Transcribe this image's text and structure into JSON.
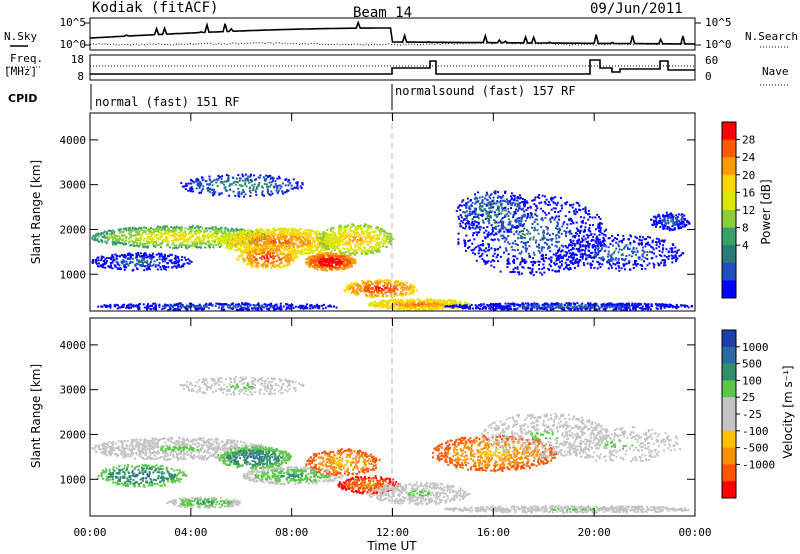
{
  "header": {
    "station": "Kodiak (fitACF)",
    "beam": "Beam 14",
    "date": "09/Jun/2011"
  },
  "strip": {
    "nsky_label": "N.Sky",
    "nsky_ticks": [
      "10^5",
      "10^0"
    ],
    "nsearch_label": "N.Search",
    "nsearch_ticks": [
      "10^5",
      "10^0"
    ],
    "freq_label_1": "Freq.",
    "freq_label_2": "[MHz]",
    "freq_ticks": [
      "18",
      "8"
    ],
    "nave_label": "Nave",
    "nave_ticks": [
      "60",
      "0"
    ],
    "cpid_label": "CPID",
    "cpid_segments": [
      "normal (fast) 151 RF",
      "normalsound (fast) 157 RF"
    ],
    "cpid_change_time": "12:00"
  },
  "chart_data": [
    {
      "type": "heatmap",
      "panel": "power",
      "ylabel": "Slant Range [km]",
      "ylim": [
        180,
        4600
      ],
      "y_ticks": [
        1000,
        2000,
        3000,
        4000
      ],
      "xlim": [
        "00:00",
        "24:00"
      ],
      "colorbar": {
        "label": "Power [dB]",
        "ticks": [
          "28",
          "24",
          "20",
          "16",
          "12",
          "8",
          "4"
        ],
        "colors": [
          "#ff0000",
          "#ff5a00",
          "#ff9a00",
          "#ffd400",
          "#d8e800",
          "#8ccd3a",
          "#3aa06a",
          "#2a7a78",
          "#1f4fbf",
          "#0000ff"
        ]
      }
    },
    {
      "type": "heatmap",
      "panel": "velocity",
      "ylabel": "Slant Range [km]",
      "ylim": [
        180,
        4600
      ],
      "y_ticks": [
        1000,
        2000,
        3000,
        4000
      ],
      "xlim": [
        "00:00",
        "24:00"
      ],
      "colorbar": {
        "label": "Velocity [m s⁻¹]",
        "ticks": [
          "1000",
          "500",
          "100",
          "25",
          "-25",
          "-100",
          "-500",
          "-1000"
        ],
        "colors": [
          "#1f3fa8",
          "#2a6aa0",
          "#2f8f6a",
          "#5cc84a",
          "#c4c4c4",
          "#c4c4c4",
          "#ffc000",
          "#ff9000",
          "#ff5500",
          "#ff0000"
        ]
      }
    }
  ],
  "xaxis": {
    "ticks": [
      "00:00",
      "04:00",
      "08:00",
      "12:00",
      "16:00",
      "20:00",
      "00:00"
    ],
    "label": "Time UT"
  }
}
